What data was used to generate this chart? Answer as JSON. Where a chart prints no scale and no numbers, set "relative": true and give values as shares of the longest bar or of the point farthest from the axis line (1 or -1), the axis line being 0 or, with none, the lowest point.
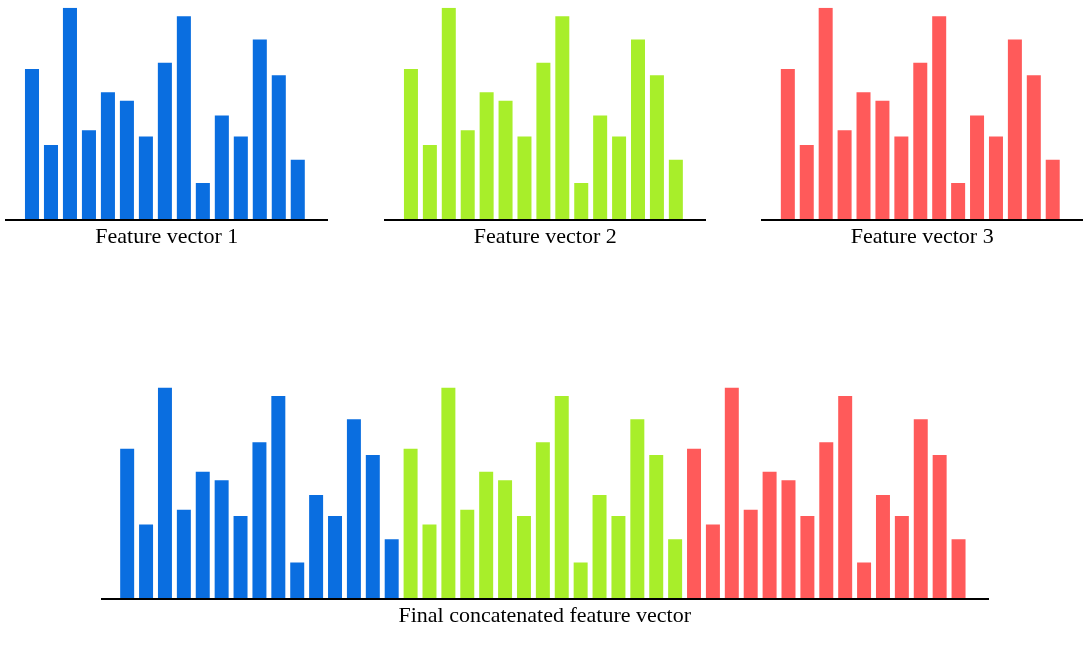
{
  "chart_data": [
    {
      "type": "bar",
      "relative": true,
      "tick_labels": false,
      "xlabel": "Feature vector 1",
      "color": "#0a6ee0",
      "categories": [
        null,
        null,
        null,
        null,
        null,
        null,
        null,
        null,
        null,
        null,
        null,
        null,
        null,
        null,
        null
      ],
      "values": [
        0.71,
        0.35,
        1,
        0.42,
        0.6,
        0.56,
        0.39,
        0.74,
        0.96,
        0.17,
        0.49,
        0.39,
        0.85,
        0.68,
        0.28
      ]
    },
    {
      "type": "bar",
      "relative": true,
      "tick_labels": false,
      "xlabel": "Feature vector 2",
      "color": "#a8ee2a",
      "categories": [
        null,
        null,
        null,
        null,
        null,
        null,
        null,
        null,
        null,
        null,
        null,
        null,
        null,
        null,
        null
      ],
      "values": [
        0.71,
        0.35,
        1,
        0.42,
        0.6,
        0.56,
        0.39,
        0.74,
        0.96,
        0.17,
        0.49,
        0.39,
        0.85,
        0.68,
        0.28
      ]
    },
    {
      "type": "bar",
      "relative": true,
      "tick_labels": false,
      "xlabel": "Feature vector 3",
      "color": "#ff5a5a",
      "categories": [
        null,
        null,
        null,
        null,
        null,
        null,
        null,
        null,
        null,
        null,
        null,
        null,
        null,
        null,
        null
      ],
      "values": [
        0.71,
        0.35,
        1,
        0.42,
        0.6,
        0.56,
        0.39,
        0.74,
        0.96,
        0.17,
        0.49,
        0.39,
        0.85,
        0.68,
        0.28
      ]
    },
    {
      "type": "bar",
      "relative": true,
      "tick_labels": false,
      "xlabel": "Final concatenated feature vector",
      "categories": [
        null,
        null,
        null,
        null,
        null,
        null,
        null,
        null,
        null,
        null,
        null,
        null,
        null,
        null,
        null,
        null,
        null,
        null,
        null,
        null,
        null,
        null,
        null,
        null,
        null,
        null,
        null,
        null,
        null,
        null,
        null,
        null,
        null,
        null,
        null,
        null,
        null,
        null,
        null,
        null,
        null,
        null,
        null,
        null,
        null
      ],
      "values": [
        0.71,
        0.35,
        1,
        0.42,
        0.6,
        0.56,
        0.39,
        0.74,
        0.96,
        0.17,
        0.49,
        0.39,
        0.85,
        0.68,
        0.28,
        0.71,
        0.35,
        1,
        0.42,
        0.6,
        0.56,
        0.39,
        0.74,
        0.96,
        0.17,
        0.49,
        0.39,
        0.85,
        0.68,
        0.28,
        0.71,
        0.35,
        1,
        0.42,
        0.6,
        0.56,
        0.39,
        0.74,
        0.96,
        0.17,
        0.49,
        0.39,
        0.85,
        0.68,
        0.28
      ],
      "colors": [
        "#0a6ee0",
        "#0a6ee0",
        "#0a6ee0",
        "#0a6ee0",
        "#0a6ee0",
        "#0a6ee0",
        "#0a6ee0",
        "#0a6ee0",
        "#0a6ee0",
        "#0a6ee0",
        "#0a6ee0",
        "#0a6ee0",
        "#0a6ee0",
        "#0a6ee0",
        "#0a6ee0",
        "#a8ee2a",
        "#a8ee2a",
        "#a8ee2a",
        "#a8ee2a",
        "#a8ee2a",
        "#a8ee2a",
        "#a8ee2a",
        "#a8ee2a",
        "#a8ee2a",
        "#a8ee2a",
        "#a8ee2a",
        "#a8ee2a",
        "#a8ee2a",
        "#a8ee2a",
        "#a8ee2a",
        "#ff5a5a",
        "#ff5a5a",
        "#ff5a5a",
        "#ff5a5a",
        "#ff5a5a",
        "#ff5a5a",
        "#ff5a5a",
        "#ff5a5a",
        "#ff5a5a",
        "#ff5a5a",
        "#ff5a5a",
        "#ff5a5a",
        "#ff5a5a",
        "#ff5a5a",
        "#ff5a5a"
      ]
    }
  ]
}
